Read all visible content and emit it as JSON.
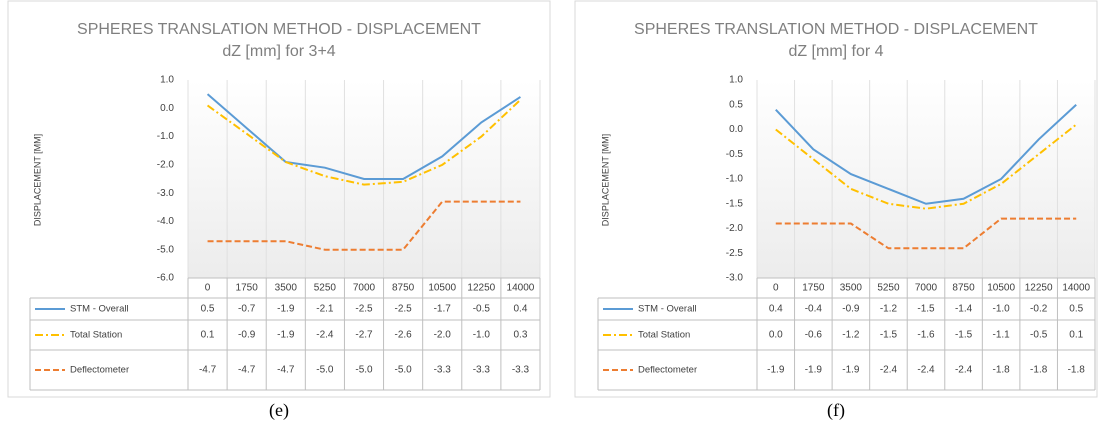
{
  "chart_data": [
    {
      "type": "line",
      "title": "SPHERES TRANSLATION METHOD - DISPLACEMENT",
      "subtitle": "dZ [mm] for 3+4",
      "ylabel": "DISPLACEMENT [MM]",
      "caption": "(e)",
      "categories": [
        "0",
        "1750",
        "3500",
        "5250",
        "7000",
        "8750",
        "10500",
        "12250",
        "14000"
      ],
      "ylim": [
        -6,
        1
      ],
      "yticks": [
        {
          "value": 1,
          "label": "1.0"
        },
        {
          "value": 0,
          "label": "0.0"
        },
        {
          "value": -1,
          "label": "-1.0"
        },
        {
          "value": -2,
          "label": "-2.0"
        },
        {
          "value": -3,
          "label": "-3.0"
        },
        {
          "value": -4,
          "label": "-4.0"
        },
        {
          "value": -5,
          "label": "-5.0"
        },
        {
          "value": -6,
          "label": "-6.0"
        }
      ],
      "series": [
        {
          "name": "STM - Overall",
          "color": "#5b9bd5",
          "dash": "solid",
          "values": [
            0.5,
            -0.7,
            -1.9,
            -2.1,
            -2.5,
            -2.5,
            -1.7,
            -0.5,
            0.4
          ],
          "value_labels": [
            "0.5",
            "-0.7",
            "-1.9",
            "-2.1",
            "-2.5",
            "-2.5",
            "-1.7",
            "-0.5",
            "0.4"
          ]
        },
        {
          "name": "Total Station",
          "color": "#ffc000",
          "dash": "dashdot",
          "values": [
            0.1,
            -0.9,
            -1.9,
            -2.4,
            -2.7,
            -2.6,
            -2.0,
            -1.0,
            0.3
          ],
          "value_labels": [
            "0.1",
            "-0.9",
            "-1.9",
            "-2.4",
            "-2.7",
            "-2.6",
            "-2.0",
            "-1.0",
            "0.3"
          ]
        },
        {
          "name": "Deflectometer",
          "color": "#ed7d31",
          "dash": "dash",
          "values": [
            -4.7,
            -4.7,
            -4.7,
            -5.0,
            -5.0,
            -5.0,
            -3.3,
            -3.3,
            -3.3
          ],
          "value_labels": [
            "-4.7",
            "-4.7",
            "-4.7",
            "-5.0",
            "-5.0",
            "-5.0",
            "-3.3",
            "-3.3",
            "-3.3"
          ]
        }
      ]
    },
    {
      "type": "line",
      "title": "SPHERES TRANSLATION METHOD - DISPLACEMENT",
      "subtitle": "dZ [mm] for 4",
      "ylabel": "DISPLACEMENT [MM]",
      "caption": "(f)",
      "categories": [
        "0",
        "1750",
        "3500",
        "5250",
        "7000",
        "8750",
        "10500",
        "12250",
        "14000"
      ],
      "ylim": [
        -3,
        1
      ],
      "yticks": [
        {
          "value": 1,
          "label": "1.0"
        },
        {
          "value": 0.5,
          "label": "0.5"
        },
        {
          "value": 0,
          "label": "0.0"
        },
        {
          "value": -0.5,
          "label": "-0.5"
        },
        {
          "value": -1,
          "label": "-1.0"
        },
        {
          "value": -1.5,
          "label": "-1.5"
        },
        {
          "value": -2,
          "label": "-2.0"
        },
        {
          "value": -2.5,
          "label": "-2.5"
        },
        {
          "value": -3,
          "label": "-3.0"
        }
      ],
      "series": [
        {
          "name": "STM - Overall",
          "color": "#5b9bd5",
          "dash": "solid",
          "values": [
            0.4,
            -0.4,
            -0.9,
            -1.2,
            -1.5,
            -1.4,
            -1.0,
            -0.2,
            0.5
          ],
          "value_labels": [
            "0.4",
            "-0.4",
            "-0.9",
            "-1.2",
            "-1.5",
            "-1.4",
            "-1.0",
            "-0.2",
            "0.5"
          ]
        },
        {
          "name": "Total Station",
          "color": "#ffc000",
          "dash": "dashdot",
          "values": [
            0.0,
            -0.6,
            -1.2,
            -1.5,
            -1.6,
            -1.5,
            -1.1,
            -0.5,
            0.1
          ],
          "value_labels": [
            "0.0",
            "-0.6",
            "-1.2",
            "-1.5",
            "-1.6",
            "-1.5",
            "-1.1",
            "-0.5",
            "0.1"
          ]
        },
        {
          "name": "Deflectometer",
          "color": "#ed7d31",
          "dash": "dash",
          "values": [
            -1.9,
            -1.9,
            -1.9,
            -2.4,
            -2.4,
            -2.4,
            -1.8,
            -1.8,
            -1.8
          ],
          "value_labels": [
            "-1.9",
            "-1.9",
            "-1.9",
            "-2.4",
            "-2.4",
            "-2.4",
            "-1.8",
            "-1.8",
            "-1.8"
          ]
        }
      ]
    }
  ]
}
